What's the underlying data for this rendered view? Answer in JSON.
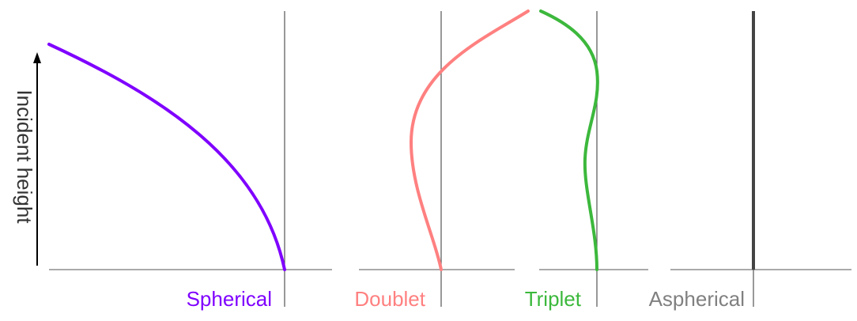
{
  "y_axis": {
    "label": "Incident height"
  },
  "panels": [
    {
      "id": "spherical",
      "label": "Spherical",
      "color": "#7f00ff"
    },
    {
      "id": "doublet",
      "label": "Doublet",
      "color": "#ff8080"
    },
    {
      "id": "triplet",
      "label": "Triplet",
      "color": "#3cb83c"
    },
    {
      "id": "aspherical",
      "label": "Aspherical",
      "color": "#808080"
    }
  ],
  "colors": {
    "axis": "#000000",
    "guide_line": "#555555",
    "aspherical_curve": "#444444"
  }
}
